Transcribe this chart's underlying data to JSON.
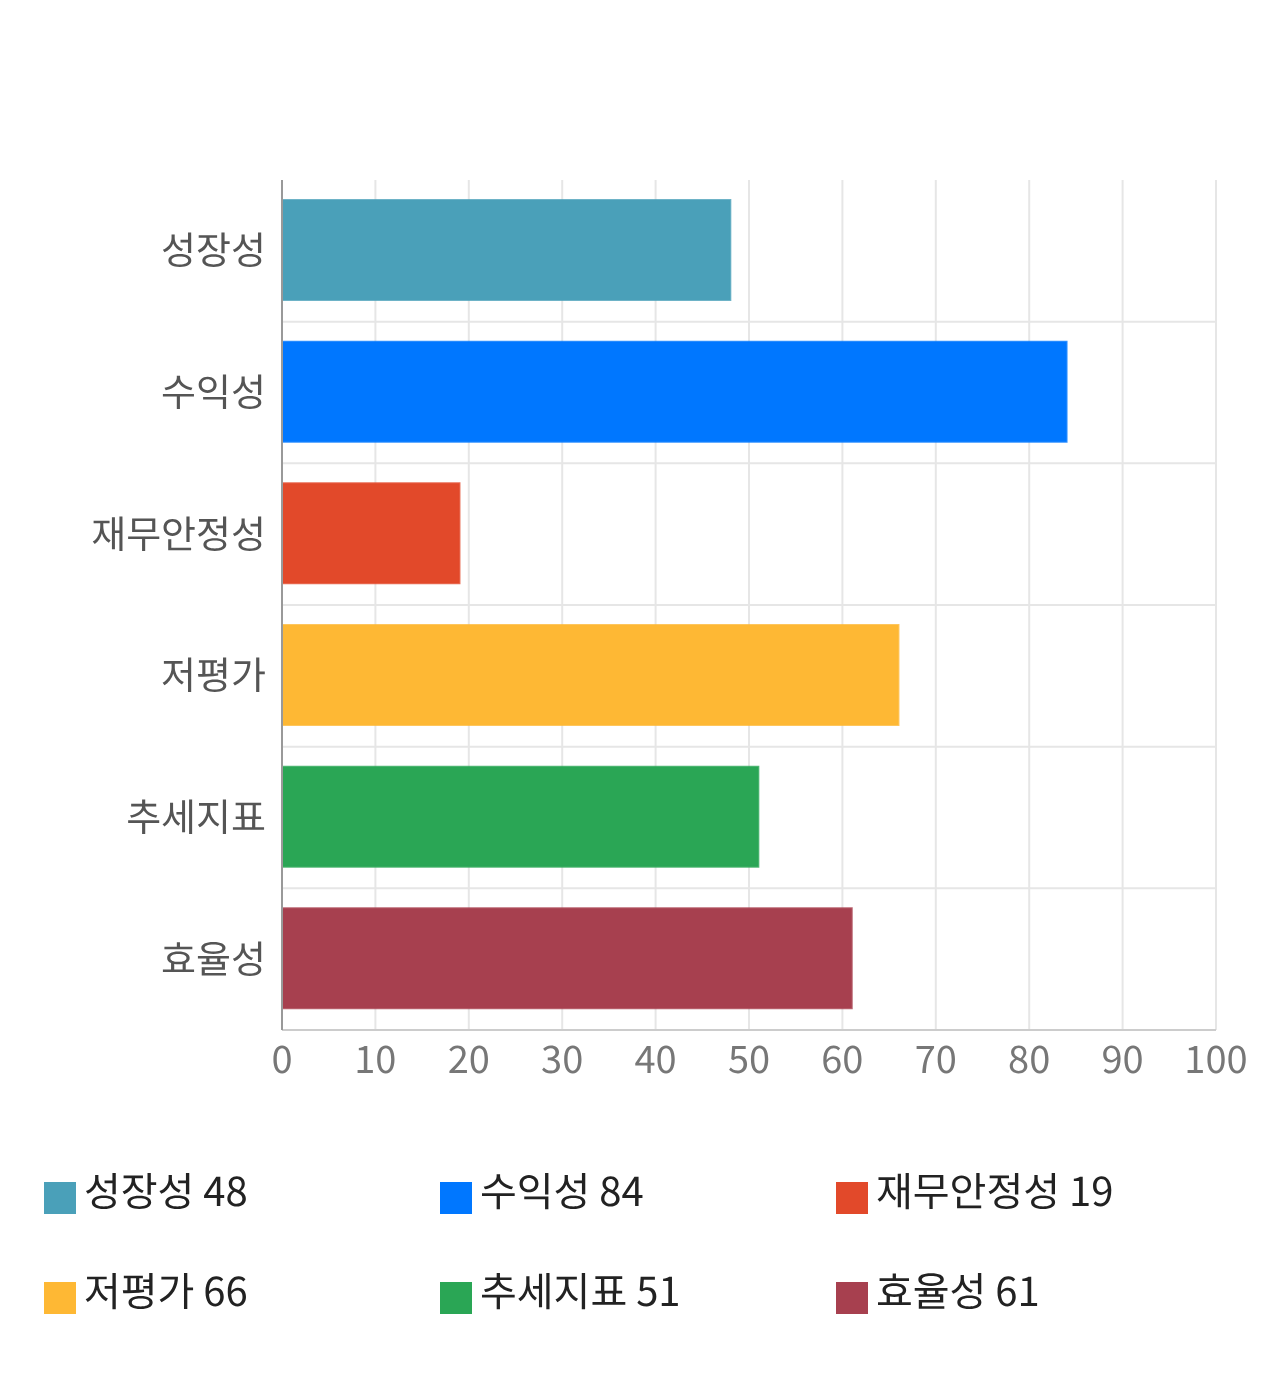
{
  "chart_data": {
    "type": "bar",
    "orientation": "horizontal",
    "stacked": true,
    "categories": [
      "성장성",
      "수익성",
      "재무안정성",
      "저평가",
      "추세지표",
      "효율성"
    ],
    "series": [
      {
        "name": "성장성 48",
        "color": "#4aa0b9",
        "values": [
          48,
          null,
          null,
          null,
          null,
          null
        ]
      },
      {
        "name": "수익성 84",
        "color": "#0077ff",
        "values": [
          null,
          84,
          null,
          null,
          null,
          null
        ]
      },
      {
        "name": "재무안정성 19",
        "color": "#e2492a",
        "values": [
          null,
          null,
          19,
          null,
          null,
          null
        ]
      },
      {
        "name": "저평가 66",
        "color": "#feb834",
        "values": [
          null,
          null,
          null,
          66,
          null,
          null
        ]
      },
      {
        "name": "추세지표 51",
        "color": "#2aa655",
        "values": [
          null,
          null,
          null,
          null,
          51,
          null
        ]
      },
      {
        "name": "효율성 61",
        "color": "#a7404f",
        "values": [
          null,
          null,
          null,
          null,
          null,
          61
        ]
      }
    ],
    "xlim": [
      0,
      100
    ],
    "xticks": [
      0,
      10,
      20,
      30,
      40,
      50,
      60,
      70,
      80,
      90,
      100
    ],
    "grid": true,
    "legend": "bottom"
  }
}
